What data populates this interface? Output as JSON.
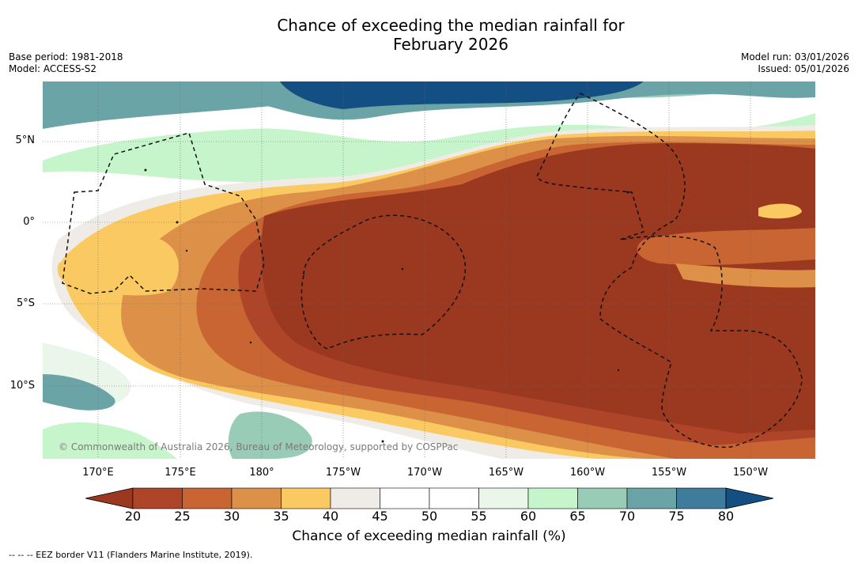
{
  "title": {
    "line1": "Chance of exceeding the median rainfall for",
    "line2": "February 2026"
  },
  "meta": {
    "base_period": "Base period: 1981-2018",
    "model": "Model: ACCESS-S2",
    "model_run": "Model run: 03/01/2026",
    "issued": "Issued: 05/01/2026"
  },
  "map": {
    "lat_labels": [
      "5°N",
      "0°",
      "5°S",
      "10°S"
    ],
    "lon_labels": [
      "170°E",
      "175°E",
      "180°",
      "175°W",
      "170°W",
      "165°W",
      "160°W",
      "155°W",
      "150°W"
    ],
    "copyright": "© Commonwealth of Australia 2026, Bureau of Meteorology, supported by COSPPac"
  },
  "colorbar": {
    "ticks": [
      "20",
      "25",
      "30",
      "35",
      "40",
      "45",
      "50",
      "55",
      "60",
      "65",
      "70",
      "75",
      "80"
    ],
    "colors": [
      "#9b3820",
      "#af4528",
      "#c96532",
      "#dc9048",
      "#fbc962",
      "#efebe6",
      "#ffffff",
      "#ffffff",
      "#eaf6ea",
      "#c6f5cb",
      "#99ccb6",
      "#6aa4a6",
      "#3f7b9b",
      "#134f83"
    ],
    "label": "Chance of exceeding median rainfall (%)"
  },
  "footnote": "--  --  -- EEZ border V11 (Flanders Marine Institute, 2019)."
}
